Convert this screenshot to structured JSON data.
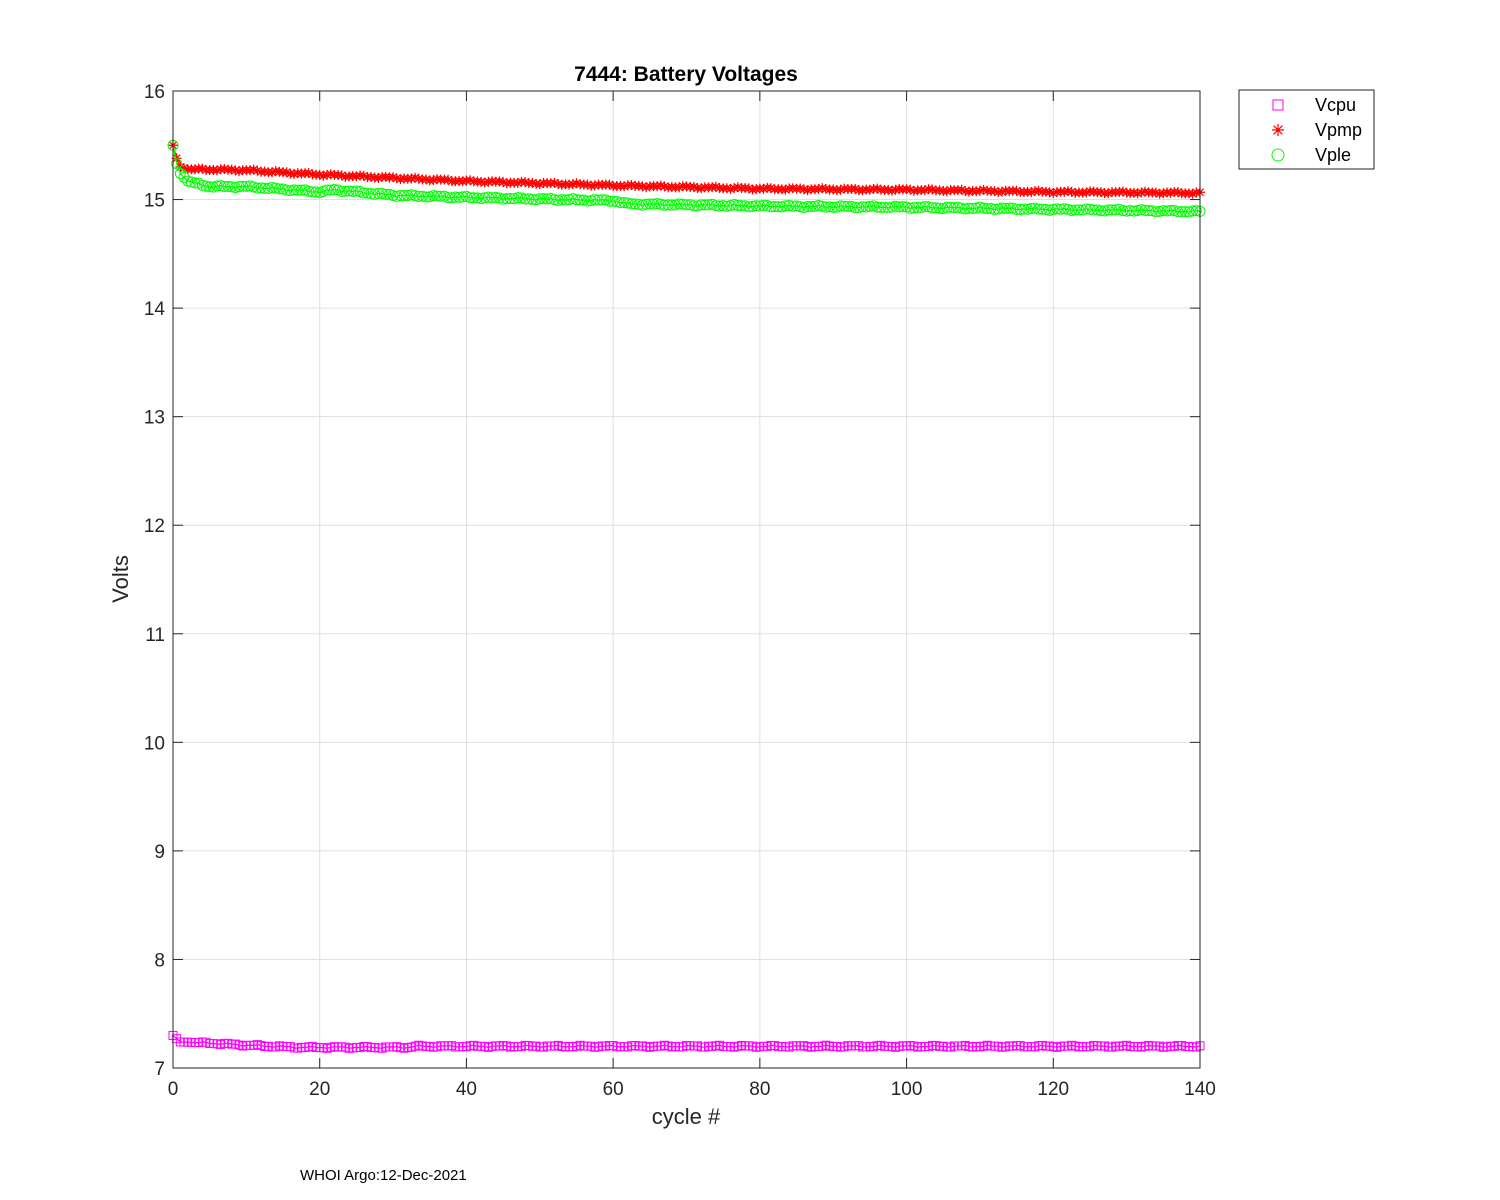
{
  "footer_text": "WHOI Argo:12-Dec-2021",
  "chart_data": {
    "type": "line",
    "title": "7444: Battery Voltages",
    "xlabel": "cycle #",
    "ylabel": "Volts",
    "xlim": [
      0,
      140
    ],
    "ylim": [
      7,
      16
    ],
    "xticks": [
      0,
      20,
      40,
      60,
      80,
      100,
      120,
      140
    ],
    "yticks": [
      7,
      8,
      9,
      10,
      11,
      12,
      13,
      14,
      15,
      16
    ],
    "grid": true,
    "legend_position": "outside-top-right",
    "x_range": {
      "start": 0,
      "end": 140,
      "step": 0.5
    },
    "series": [
      {
        "name": "Vcpu",
        "color": "#ff00ff",
        "marker": "square",
        "keypoints": [
          [
            0,
            7.3
          ],
          [
            0.5,
            7.27
          ],
          [
            1,
            7.24
          ],
          [
            5,
            7.23
          ],
          [
            10,
            7.21
          ],
          [
            17,
            7.19
          ],
          [
            32,
            7.19
          ],
          [
            33,
            7.2
          ],
          [
            140,
            7.2
          ]
        ]
      },
      {
        "name": "Vpmp",
        "color": "#ff0000",
        "marker": "asterisk",
        "keypoints": [
          [
            0,
            15.5
          ],
          [
            0.5,
            15.38
          ],
          [
            1,
            15.3
          ],
          [
            2,
            15.28
          ],
          [
            10,
            15.27
          ],
          [
            20,
            15.23
          ],
          [
            40,
            15.17
          ],
          [
            60,
            15.13
          ],
          [
            80,
            15.1
          ],
          [
            100,
            15.09
          ],
          [
            120,
            15.07
          ],
          [
            140,
            15.06
          ]
        ]
      },
      {
        "name": "Vple",
        "color": "#00ff00",
        "marker": "circle",
        "keypoints": [
          [
            0,
            15.5
          ],
          [
            0.5,
            15.33
          ],
          [
            1,
            15.24
          ],
          [
            2,
            15.17
          ],
          [
            5,
            15.12
          ],
          [
            10,
            15.12
          ],
          [
            20,
            15.07
          ],
          [
            22,
            15.09
          ],
          [
            30,
            15.04
          ],
          [
            40,
            15.02
          ],
          [
            60,
            14.99
          ],
          [
            62,
            14.96
          ],
          [
            80,
            14.94
          ],
          [
            100,
            14.93
          ],
          [
            120,
            14.91
          ],
          [
            140,
            14.89
          ]
        ]
      }
    ]
  }
}
